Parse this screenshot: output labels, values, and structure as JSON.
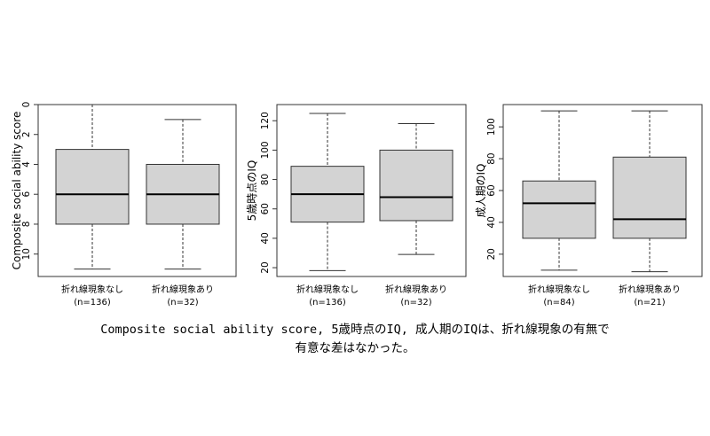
{
  "chart_data": [
    {
      "type": "box",
      "ylabel": "Composite social ability score",
      "y_reversed": true,
      "ylim": [
        0,
        11.5
      ],
      "yticks": [
        0,
        2,
        4,
        6,
        8,
        10
      ],
      "categories": [
        "折れ線現象なし",
        "折れ線現象あり"
      ],
      "category_sub": [
        "(n=136)",
        "(n=32)"
      ],
      "boxes": [
        {
          "min": 0,
          "q1": 3,
          "median": 6,
          "q3": 8,
          "max": 11
        },
        {
          "min": 1,
          "q1": 4,
          "median": 6,
          "q3": 8,
          "max": 11
        }
      ],
      "box_fill": "#d3d3d3"
    },
    {
      "type": "box",
      "ylabel": "5歳時点のIQ",
      "y_reversed": false,
      "ylim": [
        14,
        131
      ],
      "yticks": [
        20,
        40,
        60,
        80,
        100,
        120
      ],
      "categories": [
        "折れ線現象なし",
        "折れ線現象あり"
      ],
      "category_sub": [
        "(n=136)",
        "(n=32)"
      ],
      "boxes": [
        {
          "min": 18,
          "q1": 51,
          "median": 70,
          "q3": 89,
          "max": 125
        },
        {
          "min": 29,
          "q1": 52,
          "median": 68,
          "q3": 100,
          "max": 118
        }
      ],
      "box_fill": "#d3d3d3"
    },
    {
      "type": "box",
      "ylabel": "成人期のIQ",
      "y_reversed": false,
      "ylim": [
        6,
        114
      ],
      "yticks": [
        20,
        40,
        60,
        80,
        100
      ],
      "categories": [
        "折れ線現象なし",
        "折れ線現象あり"
      ],
      "category_sub": [
        "(n=84)",
        "(n=21)"
      ],
      "boxes": [
        {
          "min": 10,
          "q1": 30,
          "median": 52,
          "q3": 66,
          "max": 110
        },
        {
          "min": 9,
          "q1": 30,
          "median": 42,
          "q3": 81,
          "max": 110
        }
      ],
      "box_fill": "#d3d3d3"
    }
  ],
  "caption": {
    "line1": "Composite social ability score, 5歳時点のIQ, 成人期のIQは、折れ線現象の有無で",
    "line2": "有意な差はなかった。"
  }
}
